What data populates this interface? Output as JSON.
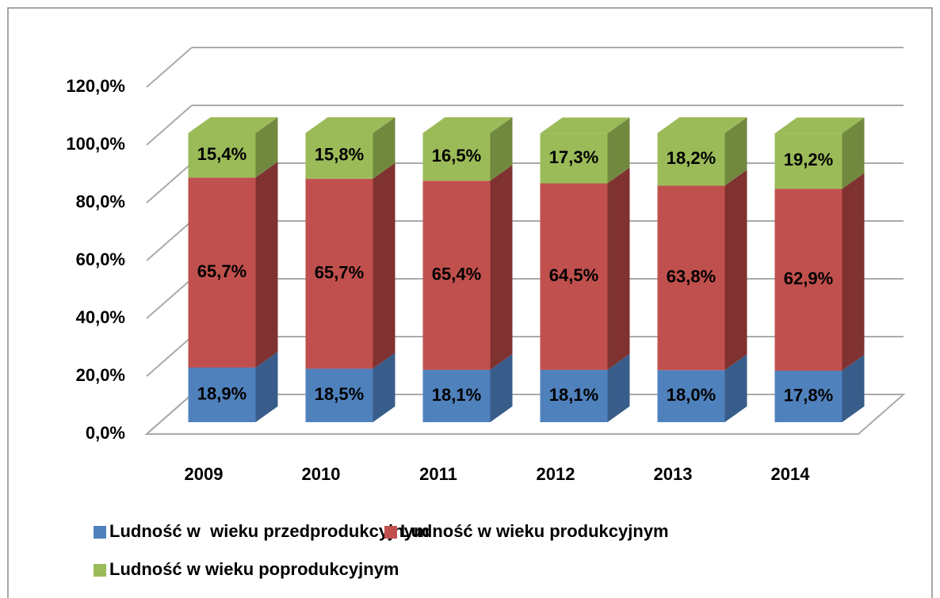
{
  "chart_data": {
    "type": "bar",
    "stacked": true,
    "three_d": true,
    "categories": [
      "2009",
      "2010",
      "2011",
      "2012",
      "2013",
      "2014"
    ],
    "series": [
      {
        "name": "Ludność w  wieku przedprodukcyjnym",
        "color": "#4f81bd",
        "side_color": "#385d8a",
        "values": [
          18.9,
          18.5,
          18.1,
          18.1,
          18.0,
          17.8
        ],
        "value_labels": [
          "18,9%",
          "18,5%",
          "18,1%",
          "18,1%",
          "18,0%",
          "17,8%"
        ]
      },
      {
        "name": "Ludność w wieku produkcyjnym",
        "color": "#c0504d",
        "side_color": "#7f3230",
        "values": [
          65.7,
          65.7,
          65.4,
          64.5,
          63.8,
          62.9
        ],
        "value_labels": [
          "65,7%",
          "65,7%",
          "65,4%",
          "64,5%",
          "63,8%",
          "62,9%"
        ]
      },
      {
        "name": "Ludność w wieku poprodukcyjnym",
        "color": "#9bbb59",
        "side_color": "#71893f",
        "values": [
          15.4,
          15.8,
          16.5,
          17.3,
          18.2,
          19.2
        ],
        "value_labels": [
          "15,4%",
          "15,8%",
          "16,5%",
          "17,3%",
          "18,2%",
          "19,2%"
        ]
      }
    ],
    "ylim": [
      0,
      120
    ],
    "yticks": [
      {
        "value": 0,
        "label": "0,0%"
      },
      {
        "value": 20,
        "label": "20,0%"
      },
      {
        "value": 40,
        "label": "40,0%"
      },
      {
        "value": 60,
        "label": "60,0%"
      },
      {
        "value": 80,
        "label": "80,0%"
      },
      {
        "value": 100,
        "label": "100,0%"
      },
      {
        "value": 120,
        "label": "120,0%"
      }
    ],
    "grid": true,
    "legend": "bottom"
  }
}
